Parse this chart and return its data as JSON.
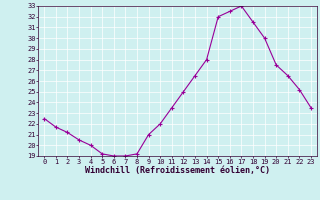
{
  "hours": [
    0,
    1,
    2,
    3,
    4,
    5,
    6,
    7,
    8,
    9,
    10,
    11,
    12,
    13,
    14,
    15,
    16,
    17,
    18,
    19,
    20,
    21,
    22,
    23
  ],
  "values": [
    22.5,
    21.7,
    21.2,
    20.5,
    20.0,
    19.2,
    19.0,
    19.0,
    19.2,
    21.0,
    22.0,
    23.5,
    25.0,
    26.5,
    28.0,
    32.0,
    32.5,
    33.0,
    31.5,
    30.0,
    27.5,
    26.5,
    25.2,
    23.5
  ],
  "ylim": [
    19,
    33
  ],
  "yticks": [
    19,
    20,
    21,
    22,
    23,
    24,
    25,
    26,
    27,
    28,
    29,
    30,
    31,
    32,
    33
  ],
  "xticks": [
    0,
    1,
    2,
    3,
    4,
    5,
    6,
    7,
    8,
    9,
    10,
    11,
    12,
    13,
    14,
    15,
    16,
    17,
    18,
    19,
    20,
    21,
    22,
    23
  ],
  "xlabel": "Windchill (Refroidissement éolien,°C)",
  "line_color": "#990099",
  "marker": "+",
  "bg_color": "#cff0f0",
  "grid_color": "#ffffff",
  "tick_fontsize": 5.0,
  "label_fontsize": 6.0
}
